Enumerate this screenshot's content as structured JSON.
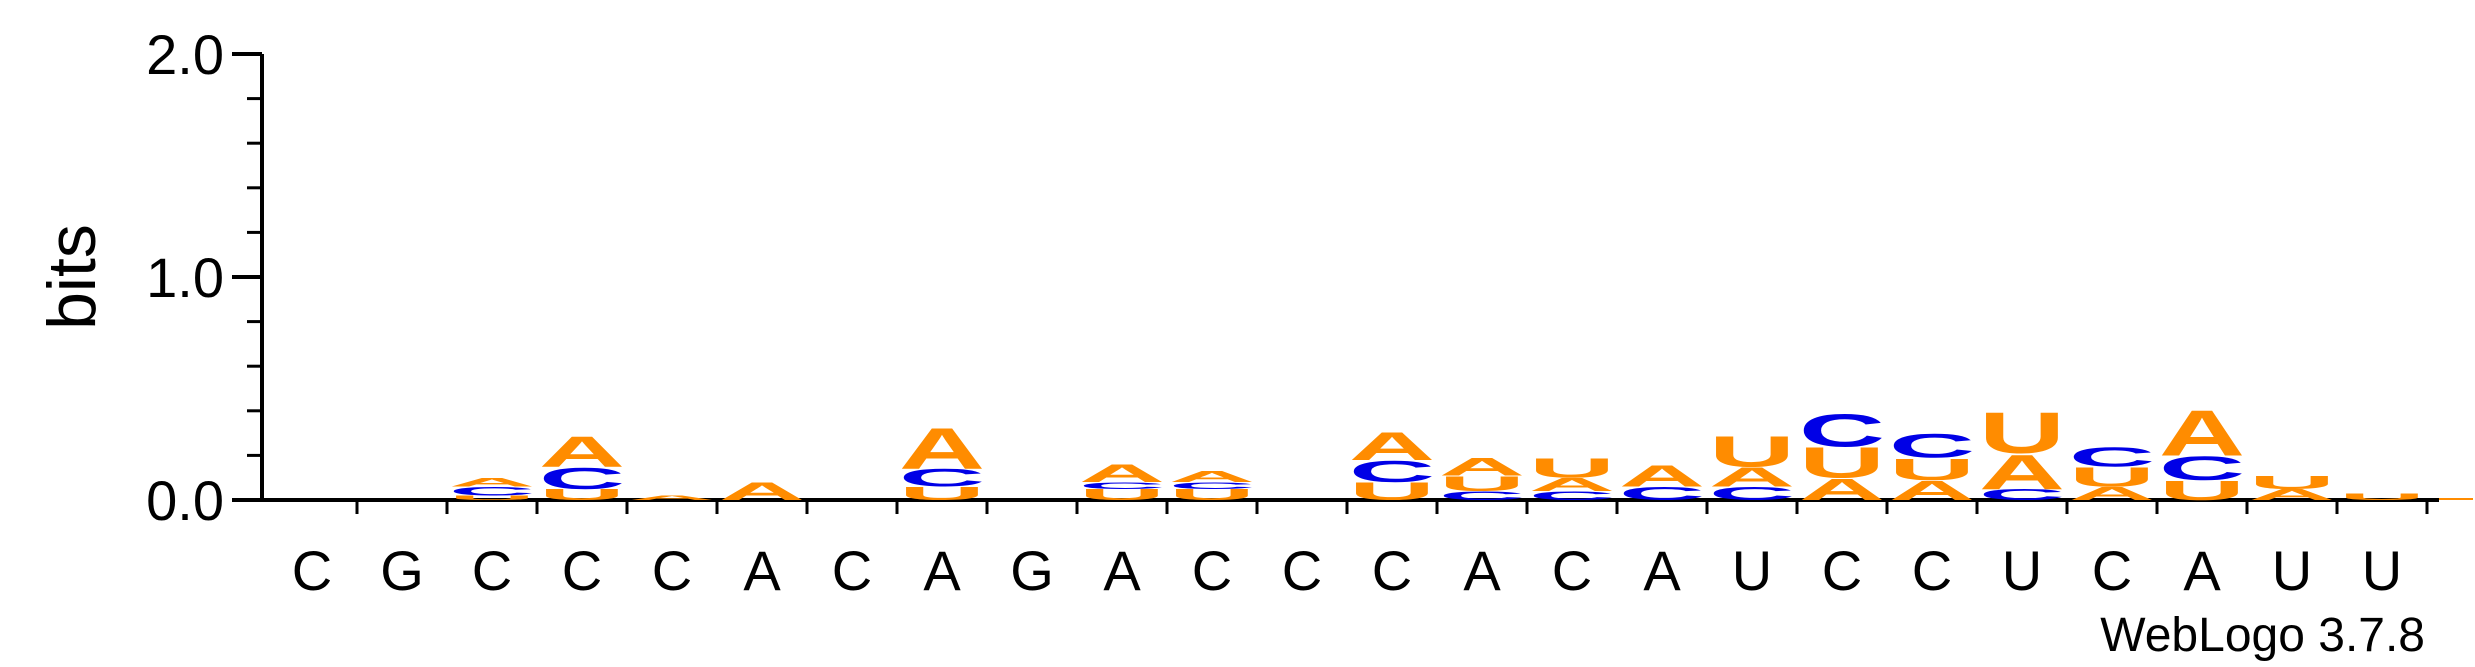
{
  "chart_data": {
    "type": "sequence-logo",
    "ylabel": "bits",
    "ylim": [
      0,
      2.0
    ],
    "yticks": [
      "0.0",
      "1.0",
      "2.0"
    ],
    "colors": {
      "A": "#ff8c00",
      "U": "#ff8c00",
      "C": "#0000e6",
      "G": "#0000e6"
    },
    "positions": [
      {
        "label": "C",
        "stack": []
      },
      {
        "label": "G",
        "stack": []
      },
      {
        "label": "C",
        "stack": [
          {
            "l": "U",
            "h": 0.02
          },
          {
            "l": "C",
            "h": 0.04
          },
          {
            "l": "A",
            "h": 0.04
          }
        ]
      },
      {
        "label": "C",
        "stack": [
          {
            "l": "U",
            "h": 0.05
          },
          {
            "l": "C",
            "h": 0.1
          },
          {
            "l": "A",
            "h": 0.14
          }
        ]
      },
      {
        "label": "C",
        "stack": [
          {
            "l": "A",
            "h": 0.02
          }
        ]
      },
      {
        "label": "A",
        "stack": [
          {
            "l": "A",
            "h": 0.08
          }
        ]
      },
      {
        "label": "C",
        "stack": []
      },
      {
        "label": "A",
        "stack": [
          {
            "l": "U",
            "h": 0.06
          },
          {
            "l": "C",
            "h": 0.08
          },
          {
            "l": "A",
            "h": 0.19
          }
        ]
      },
      {
        "label": "G",
        "stack": []
      },
      {
        "label": "A",
        "stack": [
          {
            "l": "U",
            "h": 0.05
          },
          {
            "l": "C",
            "h": 0.03
          },
          {
            "l": "A",
            "h": 0.08
          }
        ]
      },
      {
        "label": "C",
        "stack": [
          {
            "l": "U",
            "h": 0.05
          },
          {
            "l": "C",
            "h": 0.03
          },
          {
            "l": "A",
            "h": 0.05
          }
        ]
      },
      {
        "label": "C",
        "stack": []
      },
      {
        "label": "C",
        "stack": [
          {
            "l": "U",
            "h": 0.08
          },
          {
            "l": "C",
            "h": 0.1
          },
          {
            "l": "A",
            "h": 0.13
          }
        ]
      },
      {
        "label": "A",
        "stack": [
          {
            "l": "C",
            "h": 0.04
          },
          {
            "l": "U",
            "h": 0.07
          },
          {
            "l": "A",
            "h": 0.08
          }
        ]
      },
      {
        "label": "C",
        "stack": [
          {
            "l": "C",
            "h": 0.04
          },
          {
            "l": "A",
            "h": 0.06
          },
          {
            "l": "U",
            "h": 0.09
          }
        ]
      },
      {
        "label": "A",
        "stack": [
          {
            "l": "C",
            "h": 0.06
          },
          {
            "l": "A",
            "h": 0.1
          }
        ]
      },
      {
        "label": "U",
        "stack": [
          {
            "l": "C",
            "h": 0.06
          },
          {
            "l": "A",
            "h": 0.09
          },
          {
            "l": "U",
            "h": 0.14
          }
        ]
      },
      {
        "label": "C",
        "stack": [
          {
            "l": "A",
            "h": 0.1
          },
          {
            "l": "U",
            "h": 0.14
          },
          {
            "l": "C",
            "h": 0.15
          }
        ]
      },
      {
        "label": "C",
        "stack": [
          {
            "l": "A",
            "h": 0.09
          },
          {
            "l": "U",
            "h": 0.1
          },
          {
            "l": "C",
            "h": 0.11
          }
        ]
      },
      {
        "label": "U",
        "stack": [
          {
            "l": "C",
            "h": 0.05
          },
          {
            "l": "A",
            "h": 0.16
          },
          {
            "l": "U",
            "h": 0.19
          }
        ]
      },
      {
        "label": "C",
        "stack": [
          {
            "l": "A",
            "h": 0.06
          },
          {
            "l": "U",
            "h": 0.09
          },
          {
            "l": "C",
            "h": 0.09
          }
        ]
      },
      {
        "label": "A",
        "stack": [
          {
            "l": "U",
            "h": 0.09
          },
          {
            "l": "C",
            "h": 0.11
          },
          {
            "l": "A",
            "h": 0.21
          }
        ]
      },
      {
        "label": "U",
        "stack": [
          {
            "l": "A",
            "h": 0.05
          },
          {
            "l": "U",
            "h": 0.06
          }
        ]
      },
      {
        "label": "U",
        "stack": [
          {
            "l": "U",
            "h": 0.03
          }
        ]
      }
    ]
  },
  "credit": "WebLogo 3.7.8"
}
